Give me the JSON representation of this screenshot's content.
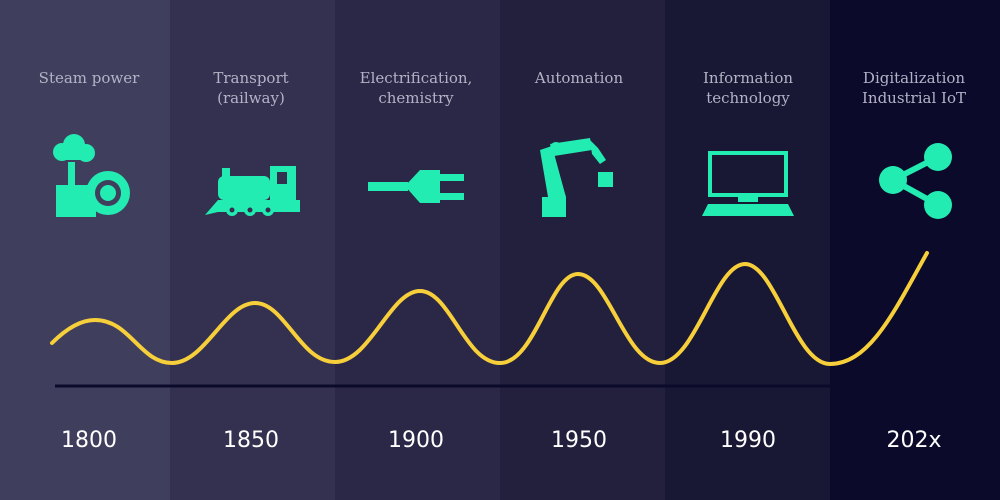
{
  "columns": [
    {
      "label_lines": [
        "Steam power"
      ],
      "year": "1800"
    },
    {
      "label_lines": [
        "Transport",
        "(railway)"
      ],
      "year": "1850"
    },
    {
      "label_lines": [
        "Electrification,",
        "chemistry"
      ],
      "year": "1900"
    },
    {
      "label_lines": [
        "Automation"
      ],
      "year": "1950"
    },
    {
      "label_lines": [
        "Information",
        "technology"
      ],
      "year": "1990"
    },
    {
      "label_lines": [
        "Digitalization",
        "Industrial IoT"
      ],
      "year": "202x"
    }
  ]
}
